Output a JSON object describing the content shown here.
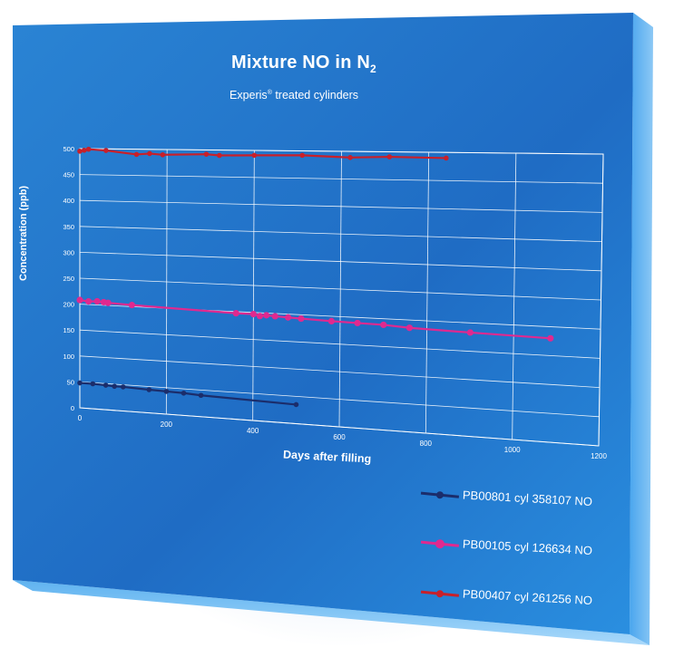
{
  "chart_data": {
    "type": "line",
    "title": "Mixture NO in N",
    "title_subscript": "2",
    "subtitle_before": "Experis",
    "subtitle_sup": "®",
    "subtitle_after": " treated cylinders",
    "xlabel": "Days after filling",
    "ylabel": "Concentration (ppb)",
    "xlim": [
      0,
      1200
    ],
    "ylim": [
      0,
      500
    ],
    "x_ticks": [
      "0",
      "200",
      "400",
      "600",
      "800",
      "1000",
      "1200"
    ],
    "y_ticks": [
      "0",
      "50",
      "100",
      "150",
      "200",
      "250",
      "300",
      "350",
      "400",
      "450",
      "500"
    ],
    "grid": true,
    "legend_position": "bottom-right",
    "series": [
      {
        "name": "PB00801 cyl 358107 NO",
        "color": "#1b2d6b",
        "x": [
          0,
          30,
          60,
          80,
          100,
          160,
          200,
          240,
          280,
          500
        ],
        "y": [
          48,
          48,
          47,
          46,
          46,
          44,
          43,
          42,
          40,
          35
        ]
      },
      {
        "name": "PB00105 cyl 126634 NO",
        "color": "#e0298f",
        "x": [
          0,
          20,
          40,
          55,
          65,
          120,
          360,
          400,
          415,
          430,
          450,
          480,
          510,
          580,
          640,
          700,
          760,
          900,
          1085
        ],
        "y": [
          208,
          206,
          207,
          206,
          205,
          203,
          197,
          197,
          194,
          196,
          195,
          194,
          193,
          191,
          190,
          189,
          186,
          183,
          180
        ]
      },
      {
        "name": "PB00407 cyl 261256 NO",
        "color": "#c8202a",
        "x": [
          0,
          10,
          20,
          60,
          130,
          160,
          190,
          290,
          320,
          400,
          510,
          620,
          710,
          840
        ],
        "y": [
          495,
          497,
          499,
          497,
          490,
          492,
          490,
          492,
          490,
          491,
          492,
          489,
          491,
          490
        ]
      }
    ]
  }
}
